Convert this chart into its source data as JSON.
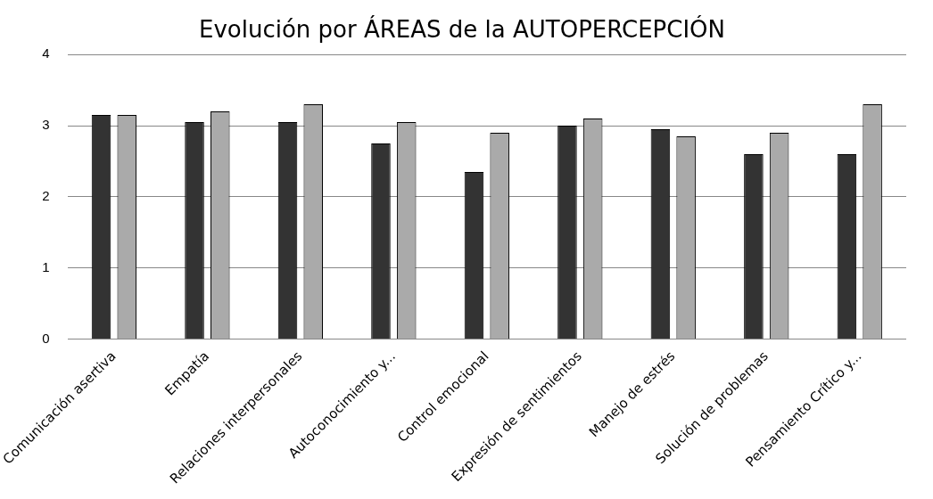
{
  "chart_data": {
    "type": "bar",
    "title": "Evolución por ÁREAS de la AUTOPERCEPCIÓN",
    "categories": [
      "Comunicación asertiva",
      "Empatía",
      "Relaciones interpersonales",
      "Autoconocimiento y...",
      "Control emocional",
      "Expresión de sentimientos",
      "Manejo de estrés",
      "Solución de problemas",
      "Pensamiento Crítico y..."
    ],
    "series": [
      {
        "color": "#333333",
        "values": [
          3.15,
          3.05,
          3.05,
          2.75,
          2.35,
          3.0,
          2.95,
          2.6,
          2.6
        ]
      },
      {
        "color": "#aaaaaa",
        "values": [
          3.15,
          3.2,
          3.3,
          3.05,
          2.9,
          3.1,
          2.85,
          2.9,
          3.3
        ]
      }
    ],
    "ylim": [
      0,
      4
    ],
    "yticks": [
      0,
      1,
      2,
      3,
      4
    ],
    "grid": "y",
    "legend": false
  }
}
